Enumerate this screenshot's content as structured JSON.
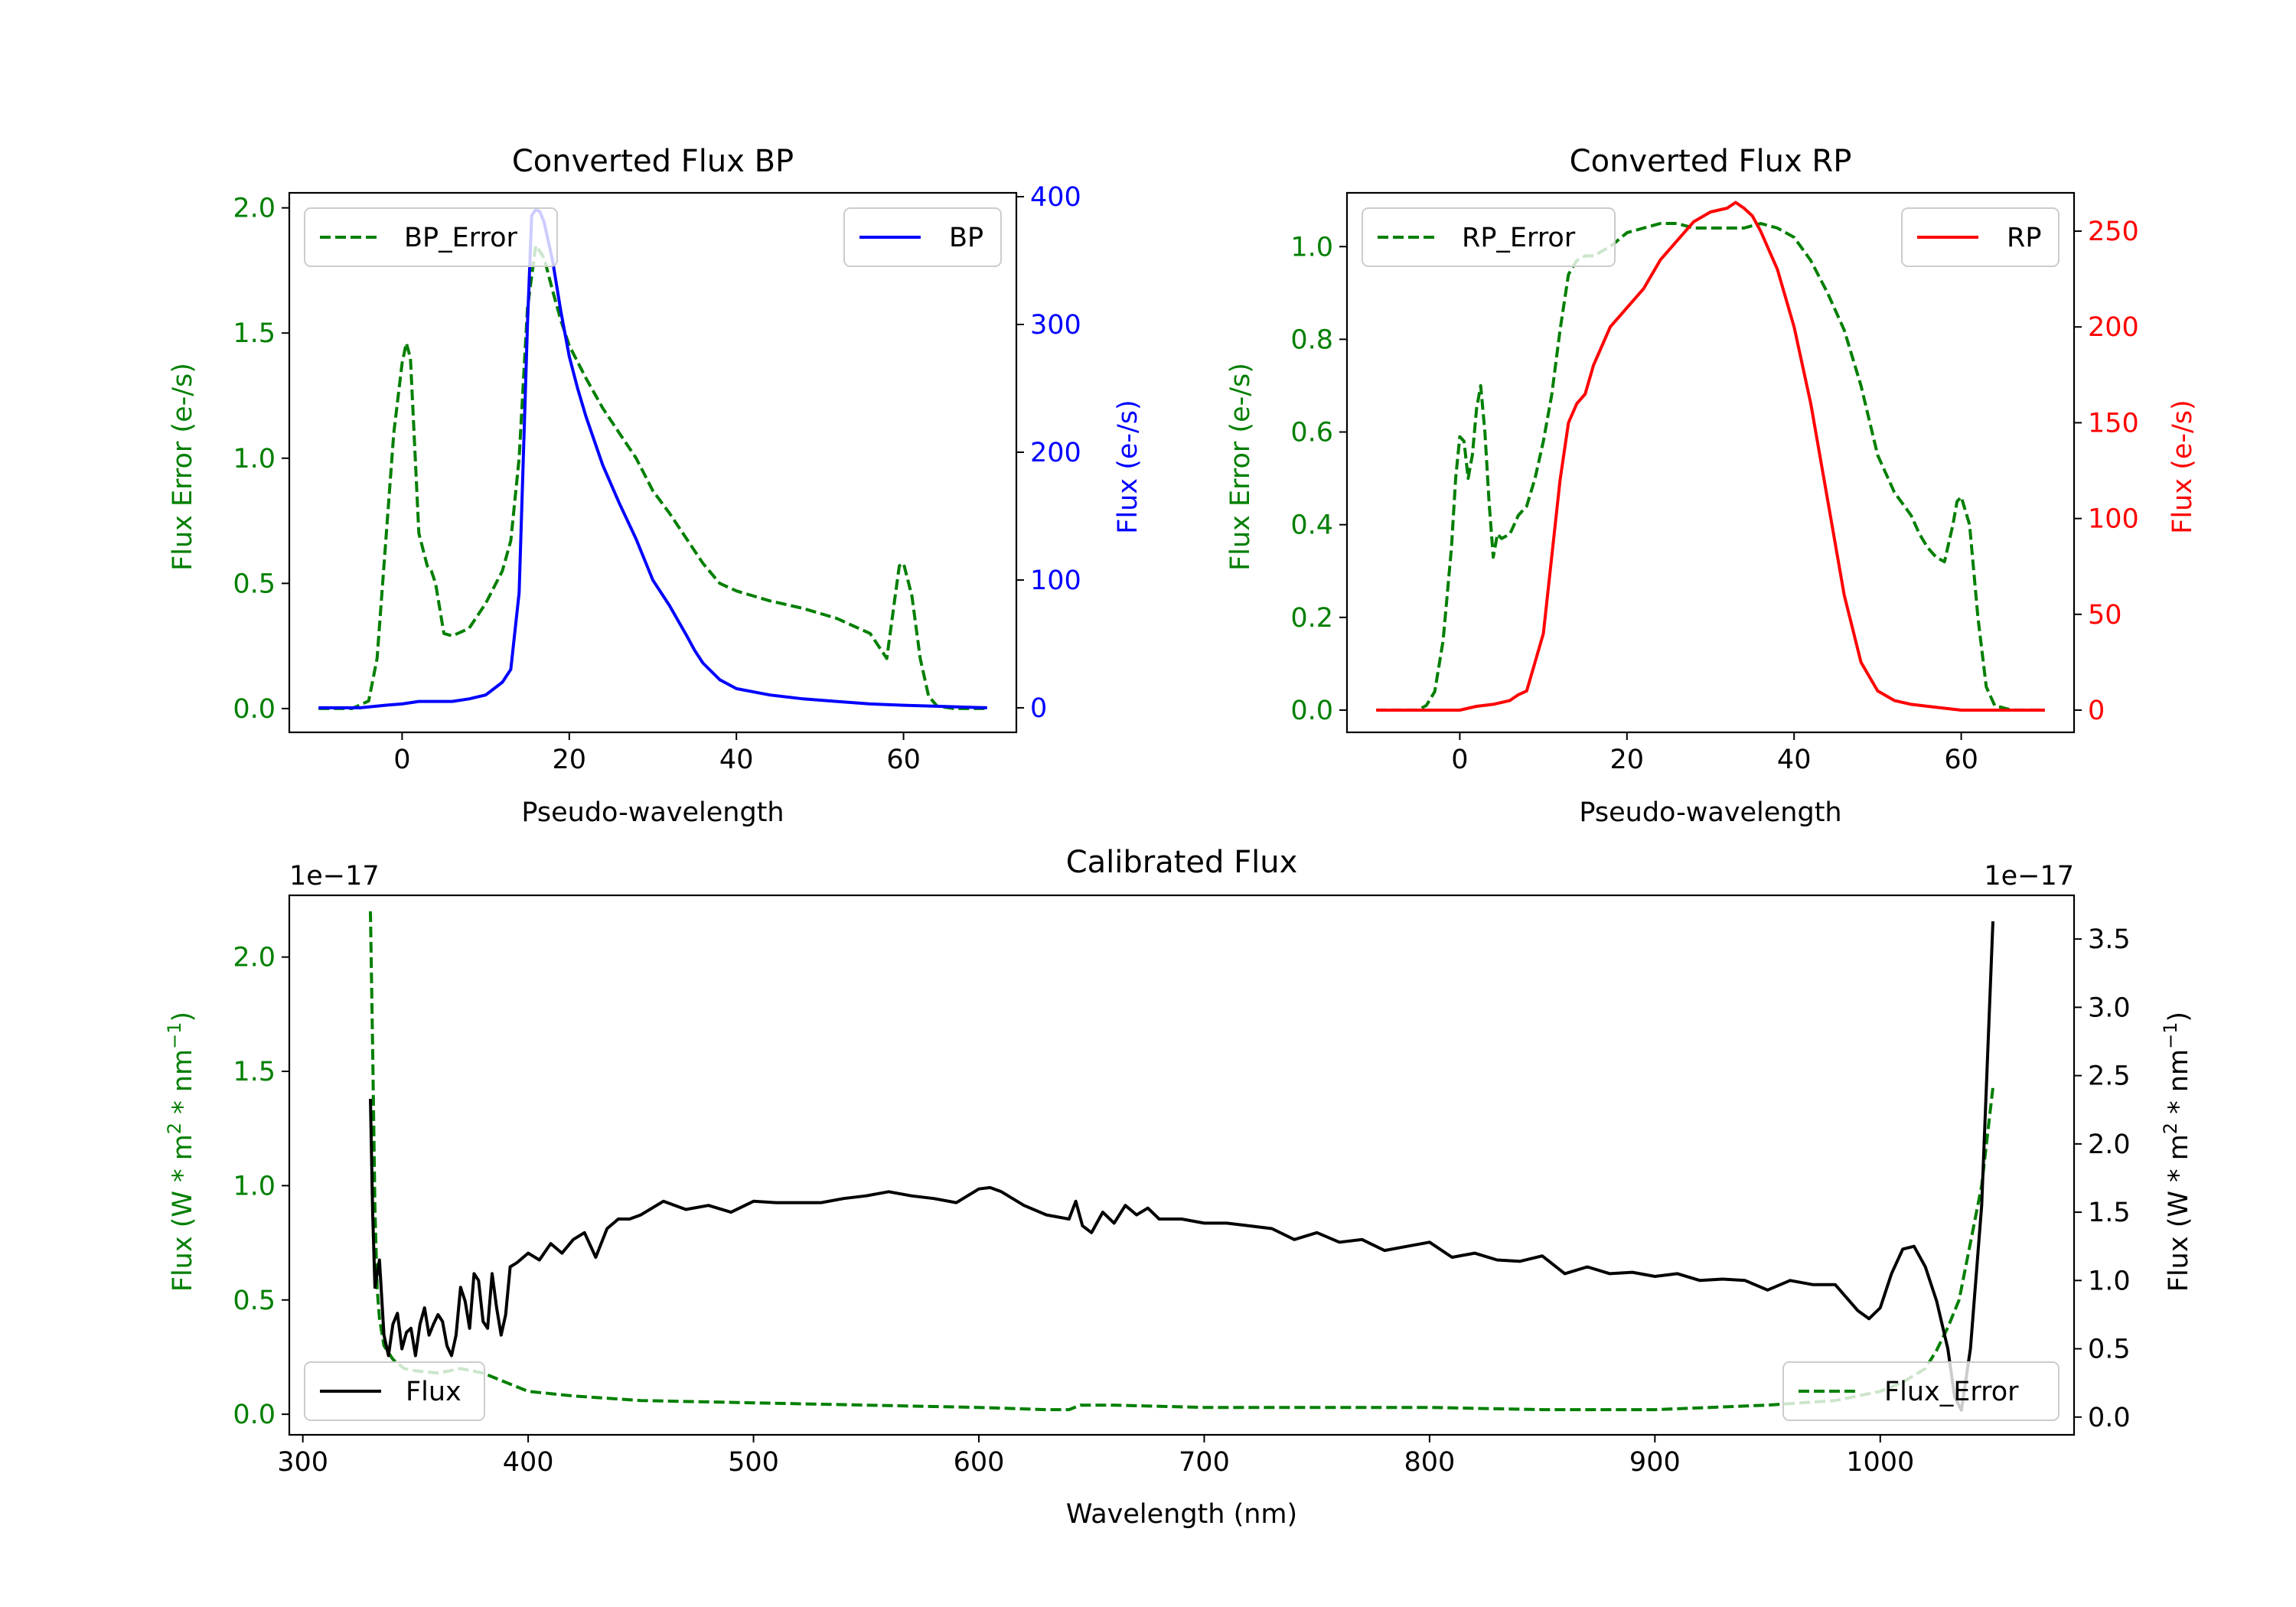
{
  "figure": {
    "colors": {
      "error": "#007f00",
      "bp": "#0000ff",
      "rp": "#ff0000",
      "flux": "#000000",
      "axis": "#000000"
    }
  },
  "chart_data": [
    {
      "id": "bp",
      "type": "line",
      "title": "Converted Flux BP",
      "xlabel": "Pseudo-wavelength",
      "ylabel_left": "Flux Error (e-/s)",
      "ylabel_right": "Flux (e-/s)",
      "xlim": [
        -13.5,
        73.5
      ],
      "ylim_left": [
        -0.095,
        2.06
      ],
      "ylim_right": [
        -19.2,
        403
      ],
      "xticks": [
        0,
        20,
        40,
        60
      ],
      "yticks_left": [
        0.0,
        0.5,
        1.0,
        1.5,
        2.0
      ],
      "yticks_right": [
        0,
        100,
        200,
        300,
        400
      ],
      "left_series": {
        "name": "BP_Error",
        "style": "dashed",
        "color": "#007f00",
        "x": [
          -10,
          -6,
          -4,
          -3,
          -2,
          -1,
          0,
          0.5,
          1,
          1.5,
          2,
          3,
          3.5,
          4,
          5,
          6,
          8,
          10,
          12,
          13,
          14,
          15,
          16,
          17,
          18,
          19,
          20,
          22,
          24,
          26,
          28,
          30,
          32,
          34,
          36,
          38,
          40,
          44,
          48,
          52,
          54,
          56,
          57,
          58,
          59,
          59.5,
          60,
          61,
          62,
          63,
          64,
          66,
          70
        ],
        "y": [
          0.0,
          0.0,
          0.03,
          0.2,
          0.65,
          1.1,
          1.38,
          1.46,
          1.4,
          1.05,
          0.7,
          0.57,
          0.55,
          0.5,
          0.3,
          0.29,
          0.32,
          0.42,
          0.55,
          0.67,
          1.0,
          1.6,
          1.85,
          1.8,
          1.67,
          1.55,
          1.45,
          1.32,
          1.2,
          1.1,
          1.0,
          0.87,
          0.78,
          0.68,
          0.58,
          0.5,
          0.47,
          0.43,
          0.4,
          0.36,
          0.33,
          0.3,
          0.25,
          0.2,
          0.45,
          0.57,
          0.58,
          0.45,
          0.2,
          0.05,
          0.01,
          0.0,
          0.0
        ]
      },
      "right_series": {
        "name": "BP",
        "style": "solid",
        "color": "#0000ff",
        "x": [
          -10,
          -5,
          -2,
          0,
          2,
          4,
          6,
          8,
          10,
          11,
          12,
          13,
          14,
          15,
          15.5,
          16,
          16.5,
          17,
          18,
          19,
          20,
          21,
          22,
          24,
          26,
          28,
          30,
          32,
          34,
          35,
          36,
          38,
          40,
          44,
          48,
          52,
          56,
          60,
          65,
          70
        ],
        "y": [
          0,
          0,
          2,
          3,
          5,
          5,
          5,
          7,
          10,
          15,
          20,
          30,
          90,
          300,
          385,
          390,
          388,
          380,
          350,
          310,
          275,
          250,
          228,
          190,
          160,
          132,
          100,
          80,
          57,
          45,
          35,
          22,
          15,
          10,
          7,
          5,
          3,
          2,
          1,
          0
        ]
      },
      "legend": {
        "left": "BP_Error",
        "right": "BP",
        "left_position": "upper left",
        "right_position": "upper right"
      }
    },
    {
      "id": "rp",
      "type": "line",
      "title": "Converted Flux RP",
      "xlabel": "Pseudo-wavelength",
      "ylabel_left": "Flux Error (e-/s)",
      "ylabel_right": "Flux (e-/s)",
      "xlim": [
        -13.5,
        73.5
      ],
      "ylim_left": [
        -0.048,
        1.116
      ],
      "ylim_right": [
        -11.6,
        270
      ],
      "xticks": [
        0,
        20,
        40,
        60
      ],
      "yticks_left": [
        0.0,
        0.2,
        0.4,
        0.6,
        0.8,
        1.0
      ],
      "yticks_right": [
        0,
        50,
        100,
        150,
        200,
        250
      ],
      "left_series": {
        "name": "RP_Error",
        "style": "dashed",
        "color": "#007f00",
        "x": [
          -10,
          -5,
          -4,
          -3,
          -2,
          -1,
          -0.5,
          0,
          0.5,
          1,
          1.5,
          2,
          2.5,
          3,
          3.5,
          4,
          4.5,
          5,
          6,
          7,
          8,
          9,
          10,
          11,
          12,
          13,
          14,
          15,
          16,
          18,
          20,
          22,
          24,
          26,
          28,
          30,
          32,
          34,
          36,
          38,
          40,
          42,
          44,
          46,
          48,
          50,
          52,
          54,
          55,
          56,
          57,
          58,
          59,
          59.5,
          60,
          61,
          62,
          63,
          64,
          66,
          70
        ],
        "y": [
          0.0,
          0.0,
          0.01,
          0.04,
          0.15,
          0.35,
          0.5,
          0.59,
          0.58,
          0.5,
          0.55,
          0.65,
          0.7,
          0.6,
          0.45,
          0.33,
          0.38,
          0.37,
          0.38,
          0.42,
          0.44,
          0.5,
          0.58,
          0.68,
          0.82,
          0.94,
          0.97,
          0.98,
          0.98,
          1.0,
          1.03,
          1.04,
          1.05,
          1.05,
          1.04,
          1.04,
          1.04,
          1.04,
          1.05,
          1.04,
          1.02,
          0.97,
          0.9,
          0.82,
          0.7,
          0.55,
          0.47,
          0.42,
          0.38,
          0.35,
          0.33,
          0.32,
          0.4,
          0.45,
          0.46,
          0.4,
          0.2,
          0.05,
          0.01,
          0.0,
          0.0
        ]
      },
      "right_series": {
        "name": "RP",
        "style": "solid",
        "color": "#ff0000",
        "x": [
          -10,
          -5,
          0,
          2,
          4,
          6,
          7,
          8,
          9,
          10,
          11,
          12,
          13,
          14,
          15,
          16,
          18,
          20,
          22,
          24,
          26,
          28,
          30,
          32,
          33,
          34,
          35,
          36,
          38,
          40,
          42,
          44,
          46,
          48,
          50,
          52,
          54,
          56,
          58,
          60,
          62,
          65,
          70
        ],
        "y": [
          0,
          0,
          0,
          2,
          3,
          5,
          8,
          10,
          25,
          40,
          80,
          120,
          150,
          160,
          165,
          180,
          200,
          210,
          220,
          235,
          245,
          255,
          260,
          262,
          265,
          262,
          258,
          250,
          230,
          200,
          160,
          110,
          60,
          25,
          10,
          5,
          3,
          2,
          1,
          0,
          0,
          0,
          0
        ]
      },
      "legend": {
        "left": "RP_Error",
        "right": "RP",
        "left_position": "upper left",
        "right_position": "upper right"
      }
    },
    {
      "id": "calibrated",
      "type": "line",
      "title": "Calibrated Flux",
      "xlabel": "Wavelength (nm)",
      "ylabel_left_parts": [
        "Flux (W * m",
        "2",
        " * nm",
        "−1",
        ")"
      ],
      "ylabel_right_parts": [
        "Flux (W * m",
        "2",
        " * nm",
        "−1",
        ")"
      ],
      "offset_left": "1e−17",
      "offset_right": "1e−17",
      "xlim": [
        294,
        1086
      ],
      "ylim_left": [
        -0.09,
        2.27
      ],
      "ylim_right": [
        -0.13,
        3.82
      ],
      "xticks": [
        300,
        400,
        500,
        600,
        700,
        800,
        900,
        1000
      ],
      "yticks_left": [
        0.0,
        0.5,
        1.0,
        1.5,
        2.0
      ],
      "yticks_right": [
        0.0,
        0.5,
        1.0,
        1.5,
        2.0,
        2.5,
        3.0,
        3.5
      ],
      "left_series": {
        "name": "Flux_Error",
        "style": "dashed",
        "color": "#007f00",
        "x": [
          330,
          331,
          332,
          333,
          334,
          336,
          340,
          345,
          350,
          360,
          370,
          380,
          390,
          400,
          420,
          450,
          500,
          550,
          600,
          630,
          640,
          645,
          660,
          700,
          750,
          800,
          850,
          900,
          950,
          980,
          1000,
          1010,
          1020,
          1025,
          1030,
          1035,
          1040,
          1045,
          1050
        ],
        "y": [
          2.2,
          1.6,
          0.9,
          0.55,
          0.42,
          0.3,
          0.24,
          0.2,
          0.19,
          0.18,
          0.2,
          0.18,
          0.14,
          0.1,
          0.08,
          0.06,
          0.05,
          0.04,
          0.03,
          0.02,
          0.02,
          0.04,
          0.04,
          0.03,
          0.03,
          0.03,
          0.02,
          0.02,
          0.04,
          0.06,
          0.1,
          0.14,
          0.2,
          0.28,
          0.38,
          0.5,
          0.75,
          1.0,
          1.43
        ]
      },
      "right_series": {
        "name": "Flux",
        "style": "solid",
        "color": "#000000",
        "x": [
          330,
          331,
          332,
          334,
          336,
          338,
          340,
          342,
          344,
          346,
          348,
          350,
          352,
          354,
          356,
          358,
          360,
          362,
          364,
          366,
          368,
          370,
          372,
          374,
          376,
          378,
          380,
          382,
          384,
          386,
          388,
          390,
          392,
          395,
          400,
          405,
          410,
          415,
          420,
          425,
          430,
          435,
          440,
          445,
          450,
          460,
          470,
          480,
          490,
          500,
          510,
          520,
          530,
          540,
          550,
          560,
          570,
          580,
          590,
          600,
          605,
          610,
          620,
          630,
          640,
          643,
          646,
          650,
          655,
          660,
          665,
          670,
          675,
          680,
          690,
          700,
          710,
          720,
          730,
          740,
          750,
          760,
          770,
          780,
          790,
          800,
          810,
          820,
          830,
          840,
          850,
          860,
          870,
          880,
          890,
          900,
          910,
          920,
          930,
          940,
          950,
          960,
          970,
          980,
          990,
          995,
          1000,
          1005,
          1010,
          1015,
          1020,
          1025,
          1030,
          1033,
          1036,
          1040,
          1045,
          1050
        ],
        "y": [
          2.33,
          1.5,
          0.95,
          1.15,
          0.6,
          0.45,
          0.68,
          0.76,
          0.5,
          0.62,
          0.65,
          0.45,
          0.68,
          0.8,
          0.6,
          0.68,
          0.75,
          0.7,
          0.52,
          0.45,
          0.6,
          0.95,
          0.85,
          0.65,
          1.05,
          1.0,
          0.7,
          0.65,
          1.05,
          0.8,
          0.6,
          0.75,
          1.1,
          1.13,
          1.2,
          1.15,
          1.27,
          1.2,
          1.3,
          1.35,
          1.17,
          1.38,
          1.45,
          1.45,
          1.48,
          1.58,
          1.52,
          1.55,
          1.5,
          1.58,
          1.57,
          1.57,
          1.57,
          1.6,
          1.62,
          1.65,
          1.62,
          1.6,
          1.57,
          1.67,
          1.68,
          1.65,
          1.55,
          1.48,
          1.45,
          1.58,
          1.4,
          1.35,
          1.5,
          1.42,
          1.55,
          1.48,
          1.53,
          1.45,
          1.45,
          1.42,
          1.42,
          1.4,
          1.38,
          1.3,
          1.35,
          1.28,
          1.3,
          1.22,
          1.25,
          1.28,
          1.17,
          1.2,
          1.15,
          1.14,
          1.18,
          1.05,
          1.1,
          1.05,
          1.06,
          1.03,
          1.05,
          1.0,
          1.01,
          1.0,
          0.93,
          1.0,
          0.97,
          0.97,
          0.78,
          0.72,
          0.8,
          1.05,
          1.23,
          1.25,
          1.1,
          0.85,
          0.5,
          0.15,
          0.05,
          0.5,
          1.55,
          3.63
        ]
      },
      "legend": {
        "left": "Flux_Error",
        "right": "Flux",
        "left_position": "lower right",
        "right_position": "lower left"
      }
    }
  ]
}
